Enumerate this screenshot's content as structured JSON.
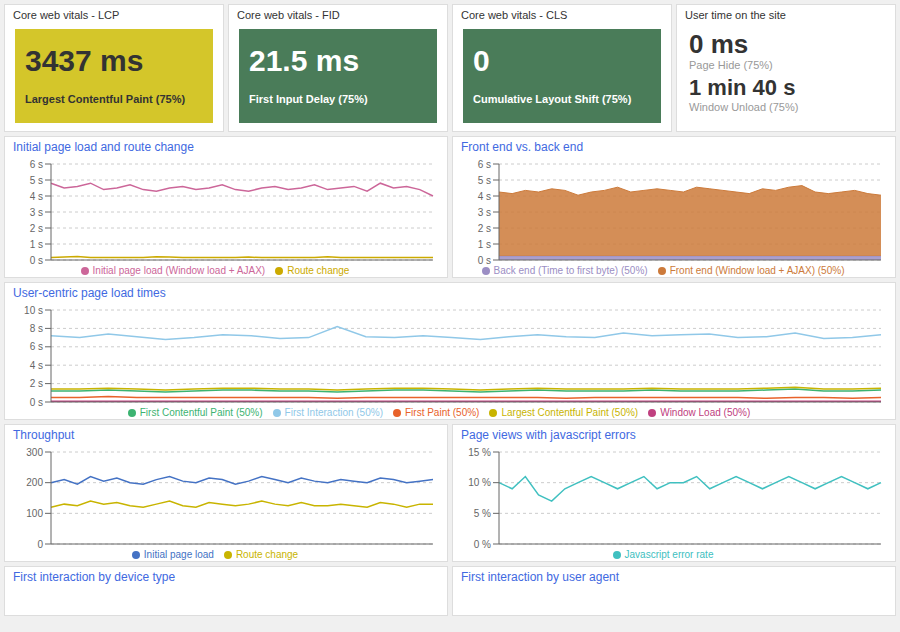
{
  "chart_data": [
    {
      "type": "kpi",
      "title": "Core web vitals - LCP",
      "annotations": [
        "3437 ms",
        "Largest Contentful Paint (75%)"
      ],
      "color": "#d4c62a"
    },
    {
      "type": "kpi",
      "title": "Core web vitals - FID",
      "annotations": [
        "21.5 ms",
        "First Input Delay (75%)"
      ],
      "color": "#4a7c59"
    },
    {
      "type": "kpi",
      "title": "Core web vitals - CLS",
      "annotations": [
        "0",
        "Cumulative Layout Shift (75%)"
      ],
      "color": "#4a7c59"
    },
    {
      "type": "kpi",
      "title": "User time on the site",
      "annotations": [
        "0 ms",
        "Page Hide (75%)",
        "1 min 40 s",
        "Window Unload (75%)"
      ]
    },
    {
      "type": "line",
      "title": "Initial page load and route change",
      "grid": true,
      "legend": "bottom",
      "tick_labels": "y",
      "ylim": [
        0,
        6
      ],
      "yticks": [
        {
          "value": 0,
          "label": "0 s"
        },
        {
          "value": 1,
          "label": "1 s"
        },
        {
          "value": 2,
          "label": "2 s"
        },
        {
          "value": 3,
          "label": "3 s"
        },
        {
          "value": 4,
          "label": "4 s"
        },
        {
          "value": 5,
          "label": "5 s"
        },
        {
          "value": 6,
          "label": "6 s"
        }
      ],
      "series": [
        {
          "name": "Initial page load (Window load + AJAX)",
          "color": "#cc6699",
          "values": [
            4.8,
            4.5,
            4.6,
            4.8,
            4.4,
            4.5,
            4.7,
            4.4,
            4.3,
            4.5,
            4.6,
            4.4,
            4.5,
            4.7,
            4.4,
            4.3,
            4.5,
            4.6,
            4.4,
            4.5,
            4.7,
            4.4,
            4.5,
            4.6,
            4.3,
            4.8,
            4.5,
            4.6,
            4.4,
            4.0
          ]
        },
        {
          "name": "Route change",
          "color": "#ccaa00",
          "values": [
            0.15,
            0.18,
            0.22,
            0.15,
            0.15,
            0.16,
            0.15,
            0.15,
            0.2,
            0.18,
            0.15,
            0.15,
            0.15,
            0.15,
            0.15,
            0.18,
            0.15,
            0.15,
            0.15,
            0.15,
            0.15,
            0.2,
            0.15,
            0.15,
            0.15,
            0.15,
            0.15,
            0.15,
            0.15,
            0.15
          ]
        }
      ]
    },
    {
      "type": "area",
      "title": "Front end vs. back end",
      "stacked": true,
      "grid": true,
      "legend": "bottom",
      "tick_labels": "y",
      "ylim": [
        0,
        6
      ],
      "yticks": [
        {
          "value": 0,
          "label": "0 s"
        },
        {
          "value": 1,
          "label": "1 s"
        },
        {
          "value": 2,
          "label": "2 s"
        },
        {
          "value": 3,
          "label": "3 s"
        },
        {
          "value": 4,
          "label": "4 s"
        },
        {
          "value": 5,
          "label": "5 s"
        },
        {
          "value": 6,
          "label": "6 s"
        }
      ],
      "series": [
        {
          "name": "Back end (Time to first byte) (50%)",
          "color": "#9b8ec4",
          "values": [
            0.25,
            0.25,
            0.25,
            0.25,
            0.25,
            0.25,
            0.25,
            0.25,
            0.25,
            0.25,
            0.25,
            0.25,
            0.25,
            0.25,
            0.25,
            0.25,
            0.25,
            0.25,
            0.25,
            0.25,
            0.25,
            0.25,
            0.25,
            0.25,
            0.25,
            0.25,
            0.25,
            0.25,
            0.25,
            0.25
          ]
        },
        {
          "name": "Front end (Window load + AJAX) (50%)",
          "color": "#cc7a3a",
          "values": [
            4.0,
            3.9,
            4.1,
            4.0,
            4.2,
            4.1,
            3.8,
            4.0,
            4.1,
            4.3,
            4.0,
            4.1,
            4.2,
            4.1,
            4.0,
            4.3,
            4.2,
            4.1,
            4.0,
            3.9,
            4.2,
            4.1,
            4.3,
            4.4,
            4.0,
            3.9,
            4.0,
            4.1,
            3.9,
            3.8
          ]
        }
      ]
    },
    {
      "type": "line",
      "title": "User-centric page load times",
      "grid": true,
      "legend": "bottom",
      "tick_labels": "y",
      "ylim": [
        0,
        10
      ],
      "yticks": [
        {
          "value": 0,
          "label": "0 s"
        },
        {
          "value": 2,
          "label": "2 s"
        },
        {
          "value": 4,
          "label": "4 s"
        },
        {
          "value": 6,
          "label": "6 s"
        },
        {
          "value": 8,
          "label": "8 s"
        },
        {
          "value": 10,
          "label": "10 s"
        }
      ],
      "series": [
        {
          "name": "First Paint (50%)",
          "color": "#e8622a",
          "values": [
            0.5,
            0.5,
            0.6,
            0.5,
            0.5,
            0.5,
            0.5,
            0.5,
            0.5,
            0.5,
            0.4,
            0.5,
            0.5,
            0.5,
            0.5,
            0.5,
            0.5,
            0.5,
            0.4,
            0.5,
            0.5,
            0.5,
            0.5,
            0.5,
            0.5,
            0.4,
            0.5,
            0.5,
            0.4,
            0.5
          ]
        },
        {
          "name": "First Contentful Paint (50%)",
          "color": "#3cb371",
          "values": [
            1.2,
            1.2,
            1.3,
            1.2,
            1.1,
            1.2,
            1.3,
            1.3,
            1.2,
            1.2,
            1.1,
            1.2,
            1.3,
            1.3,
            1.2,
            1.1,
            1.2,
            1.3,
            1.2,
            1.2,
            1.2,
            1.3,
            1.2,
            1.2,
            1.2,
            1.3,
            1.4,
            1.2,
            1.2,
            1.3
          ]
        },
        {
          "name": "Largest Contentful Paint (50%)",
          "color": "#c8b400",
          "values": [
            1.4,
            1.4,
            1.5,
            1.4,
            1.3,
            1.4,
            1.5,
            1.5,
            1.4,
            1.4,
            1.3,
            1.4,
            1.5,
            1.5,
            1.4,
            1.3,
            1.4,
            1.5,
            1.4,
            1.4,
            1.4,
            1.5,
            1.4,
            1.4,
            1.4,
            1.5,
            1.6,
            1.4,
            1.4,
            1.5
          ]
        },
        {
          "name": "Window Load (50%)",
          "color": "#c04080",
          "values": [
            0.08,
            0.08,
            0.08,
            0.08,
            0.08,
            0.08,
            0.08,
            0.08,
            0.08,
            0.08,
            0.08,
            0.08,
            0.08,
            0.08,
            0.08,
            0.08,
            0.08,
            0.08,
            0.08,
            0.08,
            0.08,
            0.08,
            0.08,
            0.08,
            0.08,
            0.08,
            0.08,
            0.08,
            0.08,
            0.08
          ]
        },
        {
          "name": "First Interaction (50%)",
          "color": "#90c8e8",
          "values": [
            7.2,
            7.0,
            7.4,
            7.1,
            6.8,
            7.0,
            7.3,
            7.2,
            6.9,
            7.0,
            8.2,
            7.1,
            7.0,
            7.2,
            7.0,
            6.8,
            7.1,
            7.3,
            7.1,
            7.0,
            7.5,
            7.2,
            7.3,
            7.4,
            7.0,
            7.1,
            7.5,
            6.9,
            7.0,
            7.3
          ]
        }
      ]
    },
    {
      "type": "line",
      "title": "Throughput",
      "grid": true,
      "legend": "bottom",
      "tick_labels": "y",
      "ylim": [
        0,
        300
      ],
      "yticks": [
        0,
        100,
        200,
        300
      ],
      "series": [
        {
          "name": "Initial page load",
          "color": "#4472c4",
          "values": [
            200,
            210,
            195,
            220,
            205,
            215,
            200,
            195,
            210,
            220,
            205,
            200,
            215,
            210,
            195,
            205,
            220,
            210,
            200,
            215,
            205,
            200,
            210,
            205,
            200,
            215,
            210,
            200,
            205,
            210
          ]
        },
        {
          "name": "Route change",
          "color": "#c8b400",
          "values": [
            120,
            130,
            125,
            140,
            130,
            135,
            125,
            120,
            130,
            140,
            125,
            120,
            135,
            130,
            125,
            130,
            140,
            130,
            125,
            135,
            125,
            125,
            130,
            125,
            120,
            135,
            130,
            120,
            130,
            130
          ]
        }
      ]
    },
    {
      "type": "line",
      "title": "Page views with javascript errors",
      "grid": true,
      "legend": "bottom",
      "tick_labels": "y",
      "ylim": [
        0,
        0.15
      ],
      "yticks": [
        {
          "value": 0.0,
          "label": "0 %"
        },
        {
          "value": 0.05,
          "label": "5 %"
        },
        {
          "value": 0.1,
          "label": "10 %"
        },
        {
          "value": 0.15,
          "label": "15 %"
        }
      ],
      "series": [
        {
          "name": "Javascript error rate",
          "color": "#40c0c0",
          "values": [
            0.1,
            0.09,
            0.11,
            0.08,
            0.07,
            0.09,
            0.1,
            0.11,
            0.1,
            0.09,
            0.1,
            0.11,
            0.09,
            0.1,
            0.1,
            0.11,
            0.09,
            0.1,
            0.11,
            0.1,
            0.09,
            0.1,
            0.11,
            0.1,
            0.09,
            0.1,
            0.11,
            0.1,
            0.09,
            0.1
          ]
        }
      ]
    },
    {
      "type": "empty",
      "title": "First interaction by device type"
    },
    {
      "type": "empty",
      "title": "First interaction by user agent"
    }
  ]
}
